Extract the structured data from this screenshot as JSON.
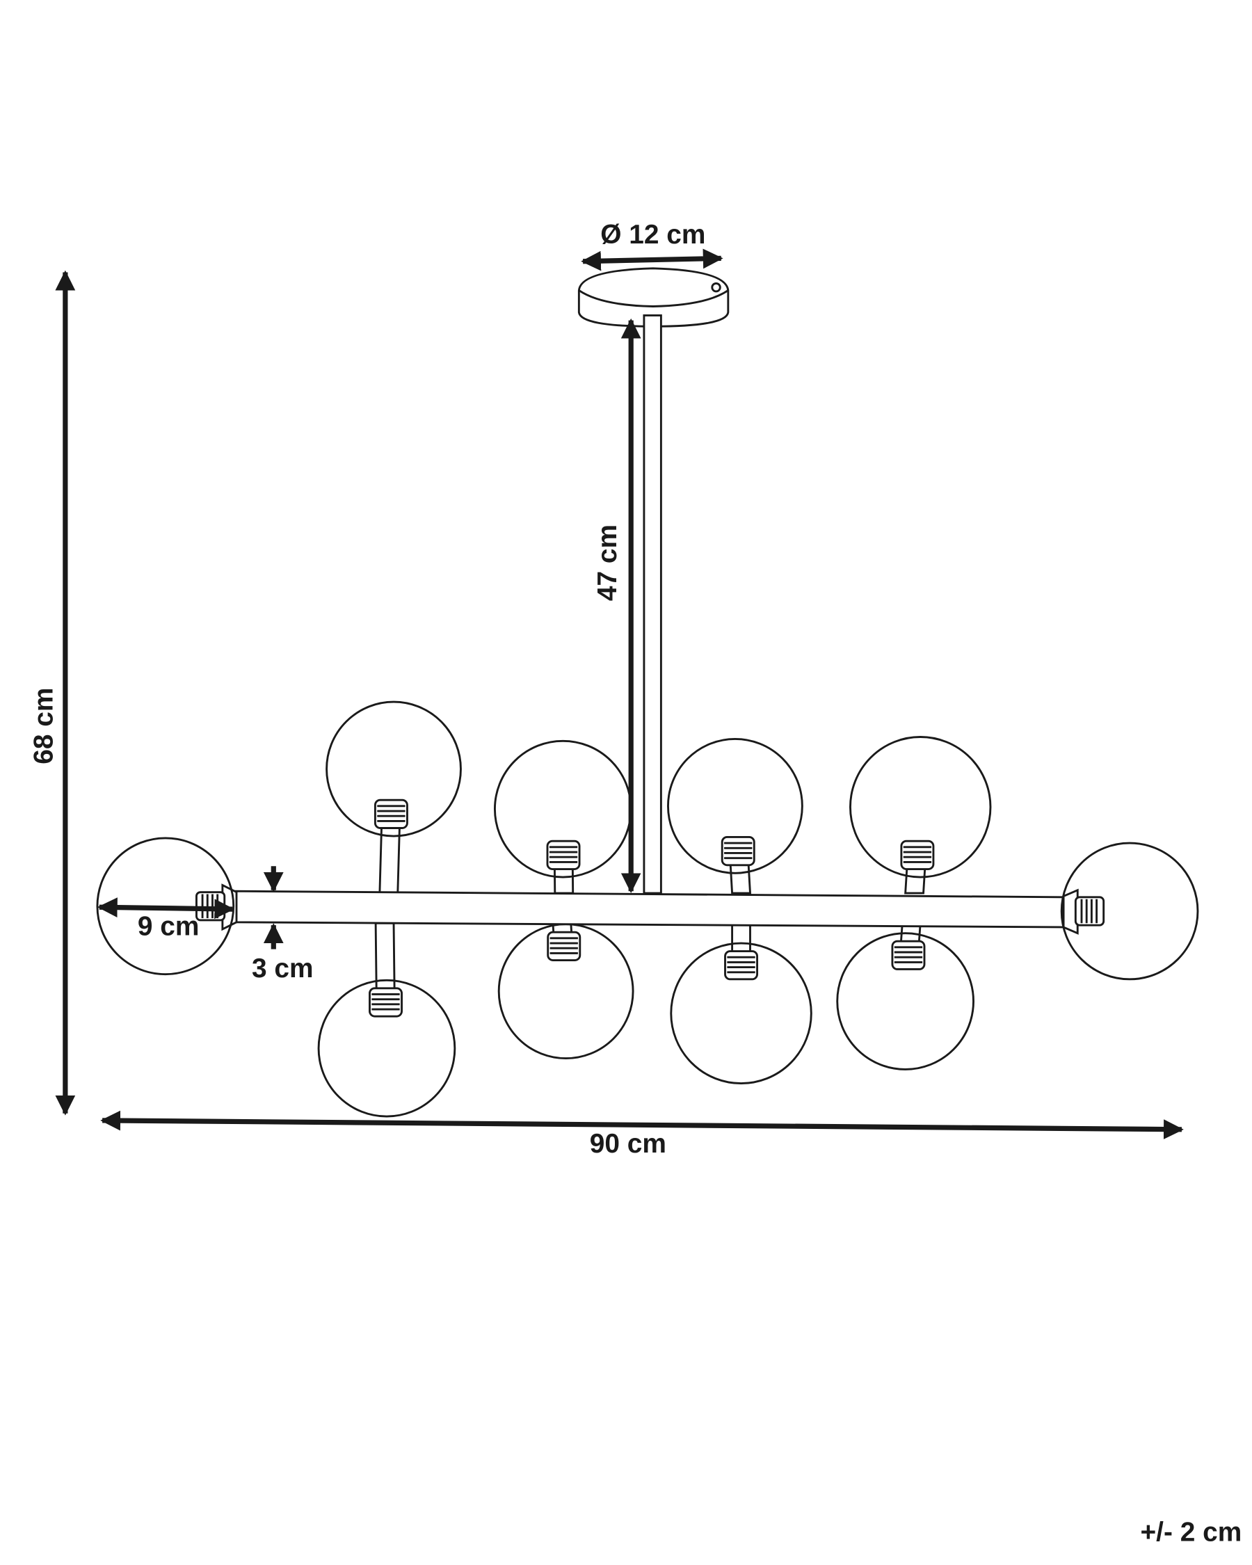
{
  "dimensions": {
    "canopy_diameter": "Ø 12 cm",
    "rod_length": "47 cm",
    "total_height": "68 cm",
    "globe_diameter": "9 cm",
    "bar_thickness": "3 cm",
    "total_width": "90 cm"
  },
  "tolerance": "+/- 2 cm"
}
